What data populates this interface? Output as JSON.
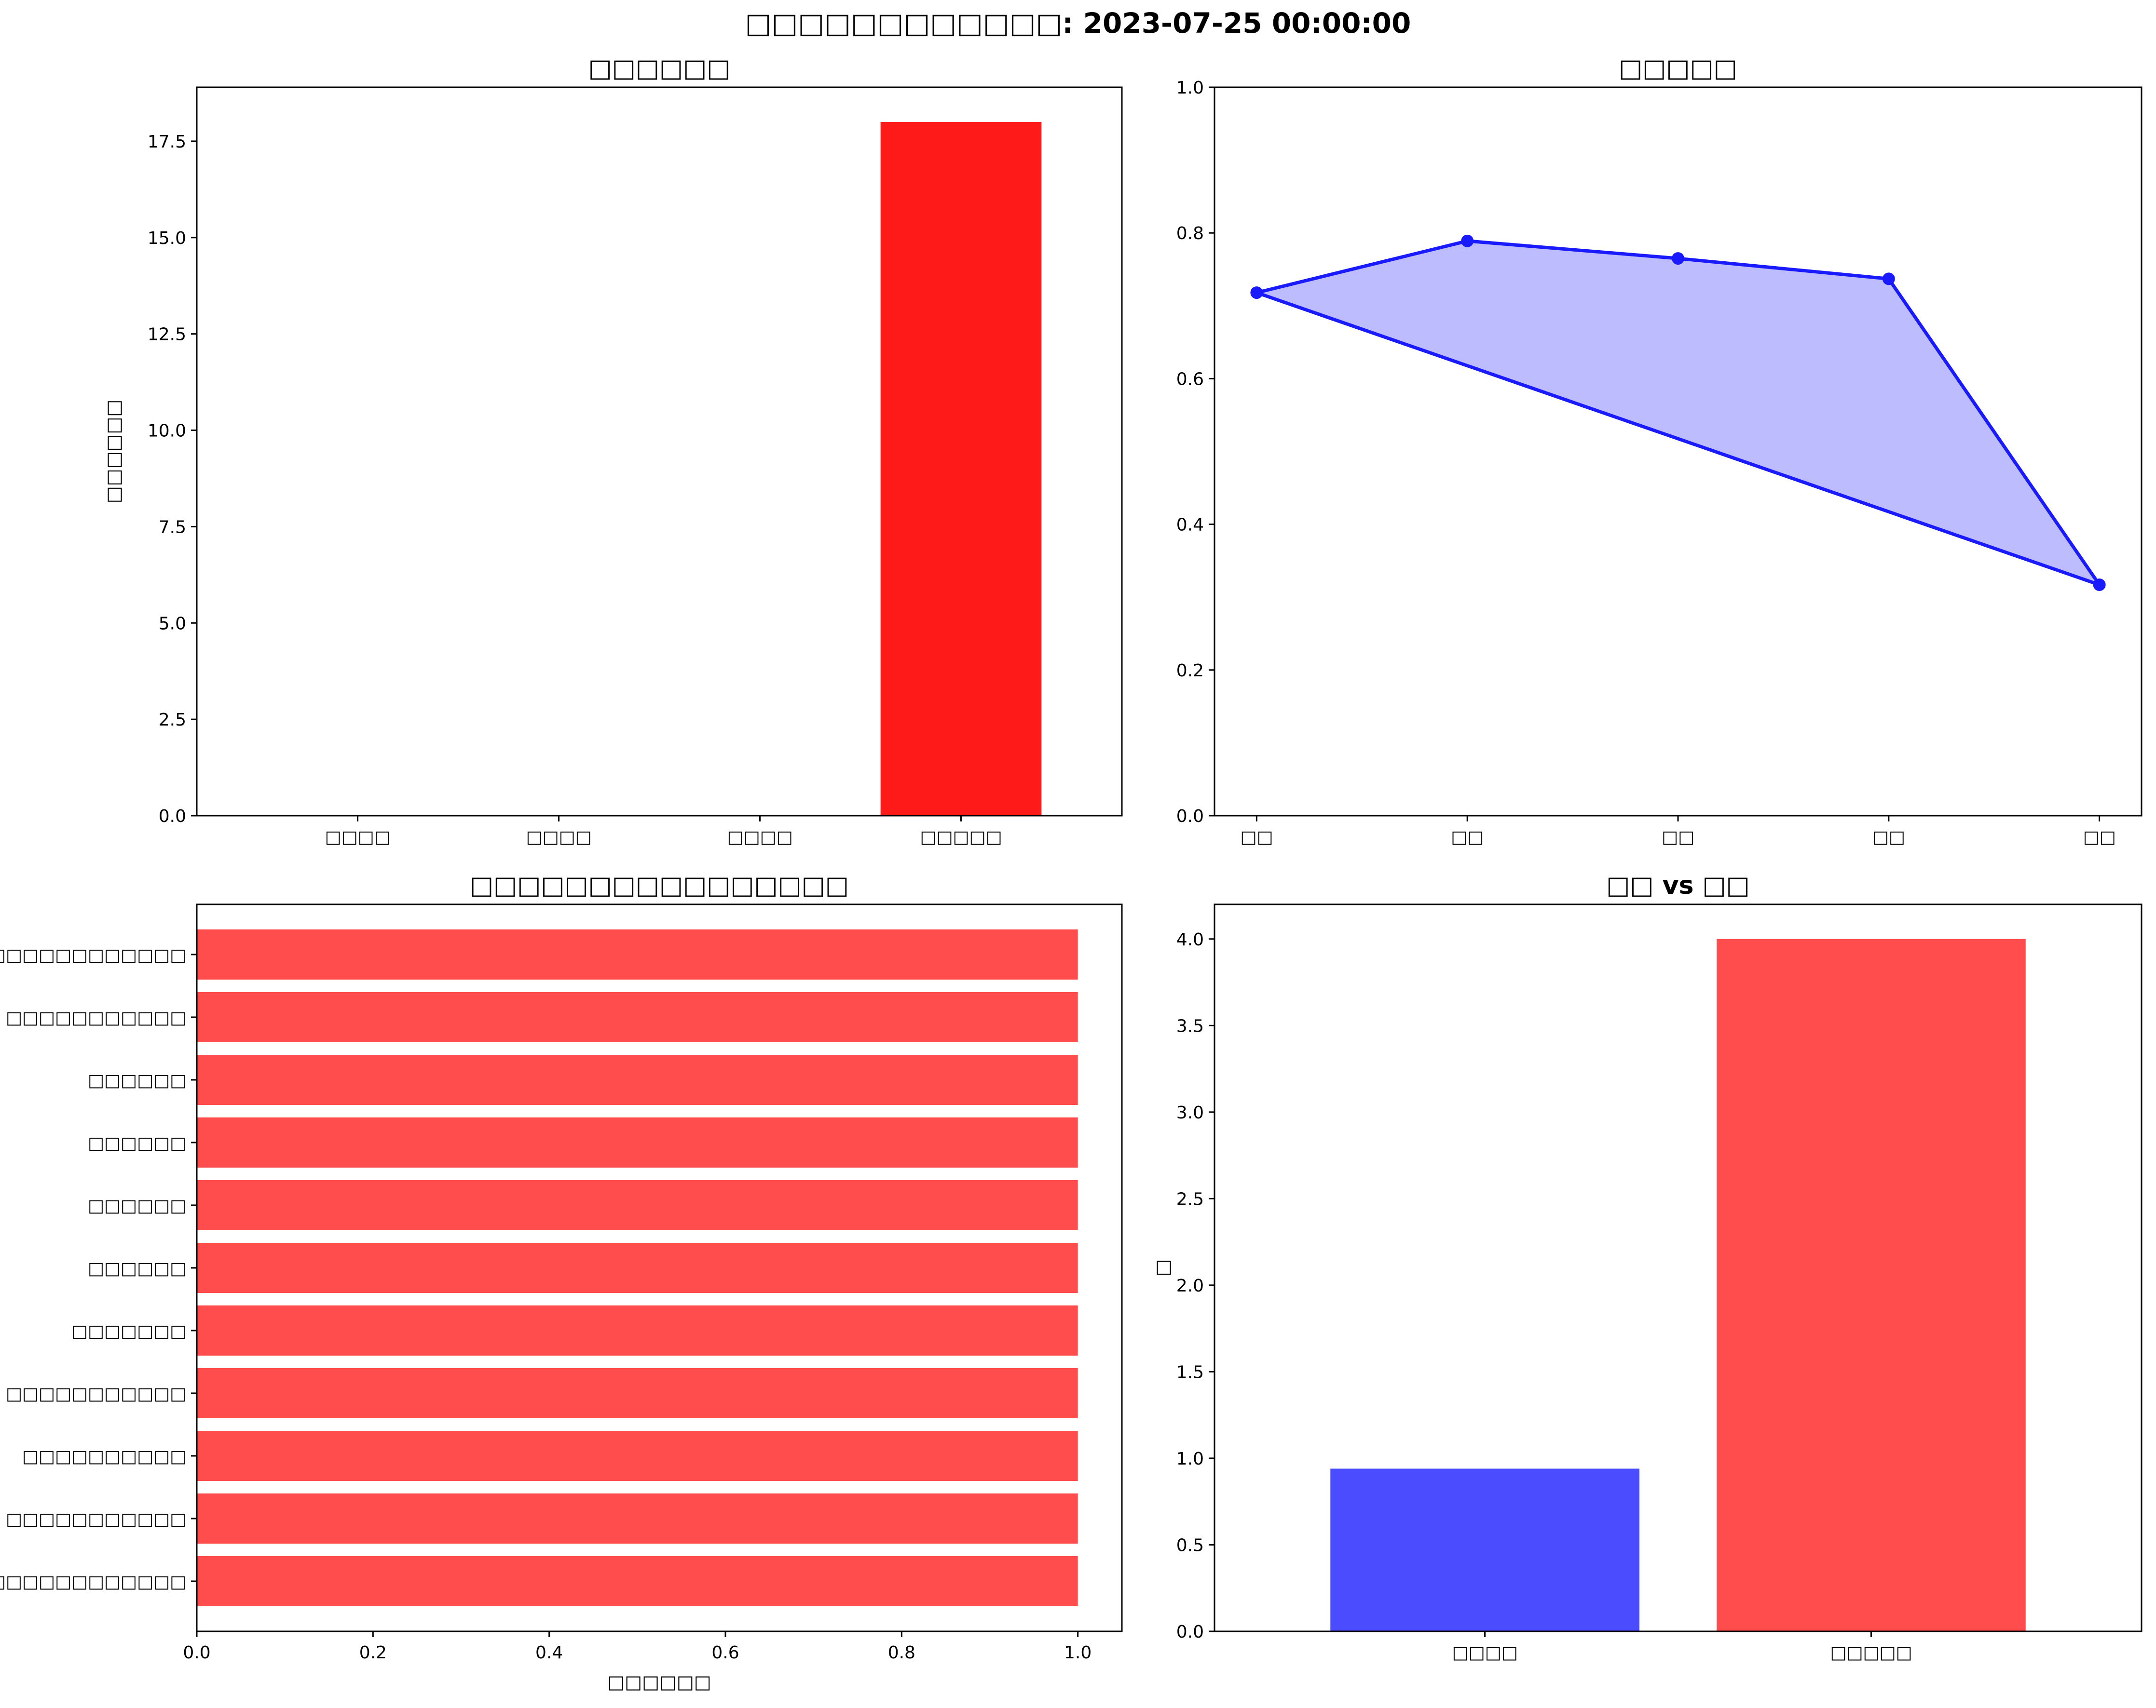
{
  "figure": {
    "suptitle": "□□□□□□□□□□□□: 2023-07-25 00:00:00"
  },
  "chart_data": [
    {
      "type": "bar",
      "title": "□□□□□□",
      "xlabel": "",
      "ylabel": "□□□□□□",
      "categories": [
        "□□□□",
        "□□□□",
        "□□□□",
        "□□□□□"
      ],
      "values": [
        0,
        0,
        0,
        18
      ],
      "ylim": [
        0,
        18.9
      ],
      "yticks": [
        "0.0",
        "2.5",
        "5.0",
        "7.5",
        "10.0",
        "12.5",
        "15.0",
        "17.5"
      ],
      "colors": [
        "#ff1a1a"
      ],
      "grid": false
    },
    {
      "type": "area",
      "title": "□□□□□",
      "xlabel": "",
      "ylabel": "",
      "categories": [
        "□□",
        "□□",
        "□□",
        "□□",
        "□□"
      ],
      "values": [
        0.718,
        0.789,
        0.765,
        0.737,
        0.317
      ],
      "ylim": [
        0,
        1.0
      ],
      "yticks": [
        "0.0",
        "0.2",
        "0.4",
        "0.6",
        "0.8",
        "1.0"
      ],
      "line_color": "#1a1aff",
      "fill_color": "#bcbcff",
      "grid": false
    },
    {
      "type": "bar",
      "orientation": "horizontal",
      "title": "□□□□□□□□□□□□□□□□",
      "xlabel": "□□□□□□",
      "ylabel": "",
      "categories": [
        "□□□□□□□□□□□□□□",
        "□□□□□□□□□□□",
        "□□□□□□□□□□",
        "□□□□□□□□□□□",
        "□□□□□□□",
        "□□□□□□",
        "□□□□□□",
        "□□□□□□",
        "□□□□□□",
        "□□□□□□□□□□□",
        "□□□□□□□□□□□□□"
      ],
      "values": [
        1,
        1,
        1,
        1,
        1,
        1,
        1,
        1,
        1,
        1,
        1
      ],
      "xlim": [
        0,
        1.05
      ],
      "xticks": [
        "0.0",
        "0.2",
        "0.4",
        "0.6",
        "0.8",
        "1.0"
      ],
      "colors": [
        "#ff4c4c"
      ],
      "grid": false
    },
    {
      "type": "bar",
      "title": "□□ vs □□",
      "xlabel": "",
      "ylabel": "□",
      "categories": [
        "□□□□",
        "□□□□□"
      ],
      "values": [
        0.94,
        4.0
      ],
      "ylim": [
        0,
        4.2
      ],
      "yticks": [
        "0.0",
        "0.5",
        "1.0",
        "1.5",
        "2.0",
        "2.5",
        "3.0",
        "3.5",
        "4.0"
      ],
      "colors": [
        "#4c4cff",
        "#ff4c4c"
      ],
      "grid": false
    }
  ]
}
